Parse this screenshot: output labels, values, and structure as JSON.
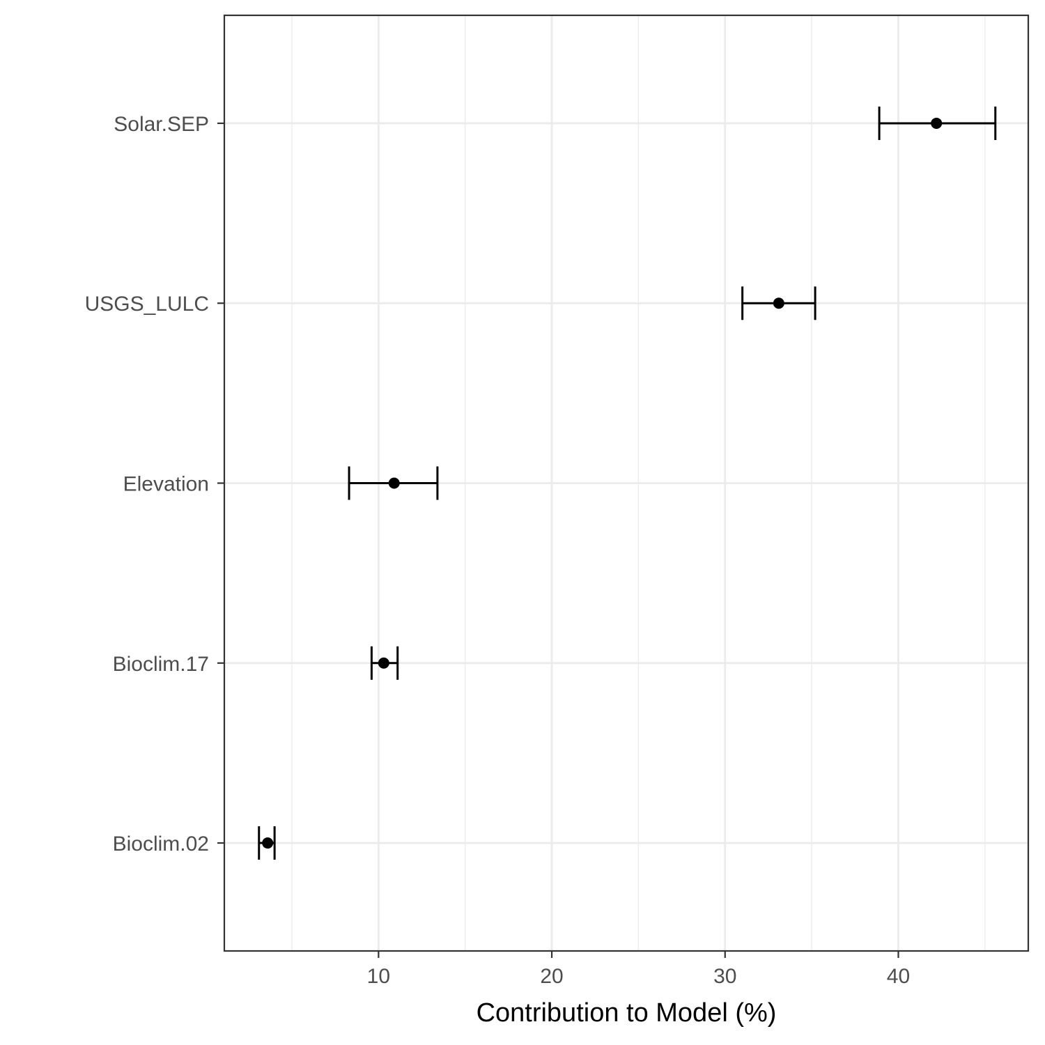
{
  "chart_data": {
    "type": "scatter",
    "subtype": "point-with-error-bars",
    "orientation": "horizontal",
    "title": "",
    "xlabel": "Contribution to Model (%)",
    "ylabel": "",
    "xlim": [
      1.1,
      47.5
    ],
    "x_ticks": [
      10,
      20,
      30,
      40
    ],
    "x_tick_labels": [
      "10",
      "20",
      "30",
      "40"
    ],
    "categories": [
      "Solar.SEP",
      "USGS_LULC",
      "Elevation",
      "Bioclim.17",
      "Bioclim.02"
    ],
    "points": [
      {
        "category": "Solar.SEP",
        "value": 42.2,
        "lower": 38.9,
        "upper": 45.6
      },
      {
        "category": "USGS_LULC",
        "value": 33.1,
        "lower": 31.0,
        "upper": 35.2
      },
      {
        "category": "Elevation",
        "value": 10.9,
        "lower": 8.3,
        "upper": 13.4
      },
      {
        "category": "Bioclim.17",
        "value": 10.3,
        "lower": 9.6,
        "upper": 11.1
      },
      {
        "category": "Bioclim.02",
        "value": 3.6,
        "lower": 3.1,
        "upper": 4.0
      }
    ],
    "grid": true,
    "legend": "none",
    "colors": {
      "background": "#ffffff",
      "panel_border": "#333333",
      "grid": "#ebebeb",
      "points": "#000000",
      "tick_text": "#4d4d4d"
    }
  }
}
